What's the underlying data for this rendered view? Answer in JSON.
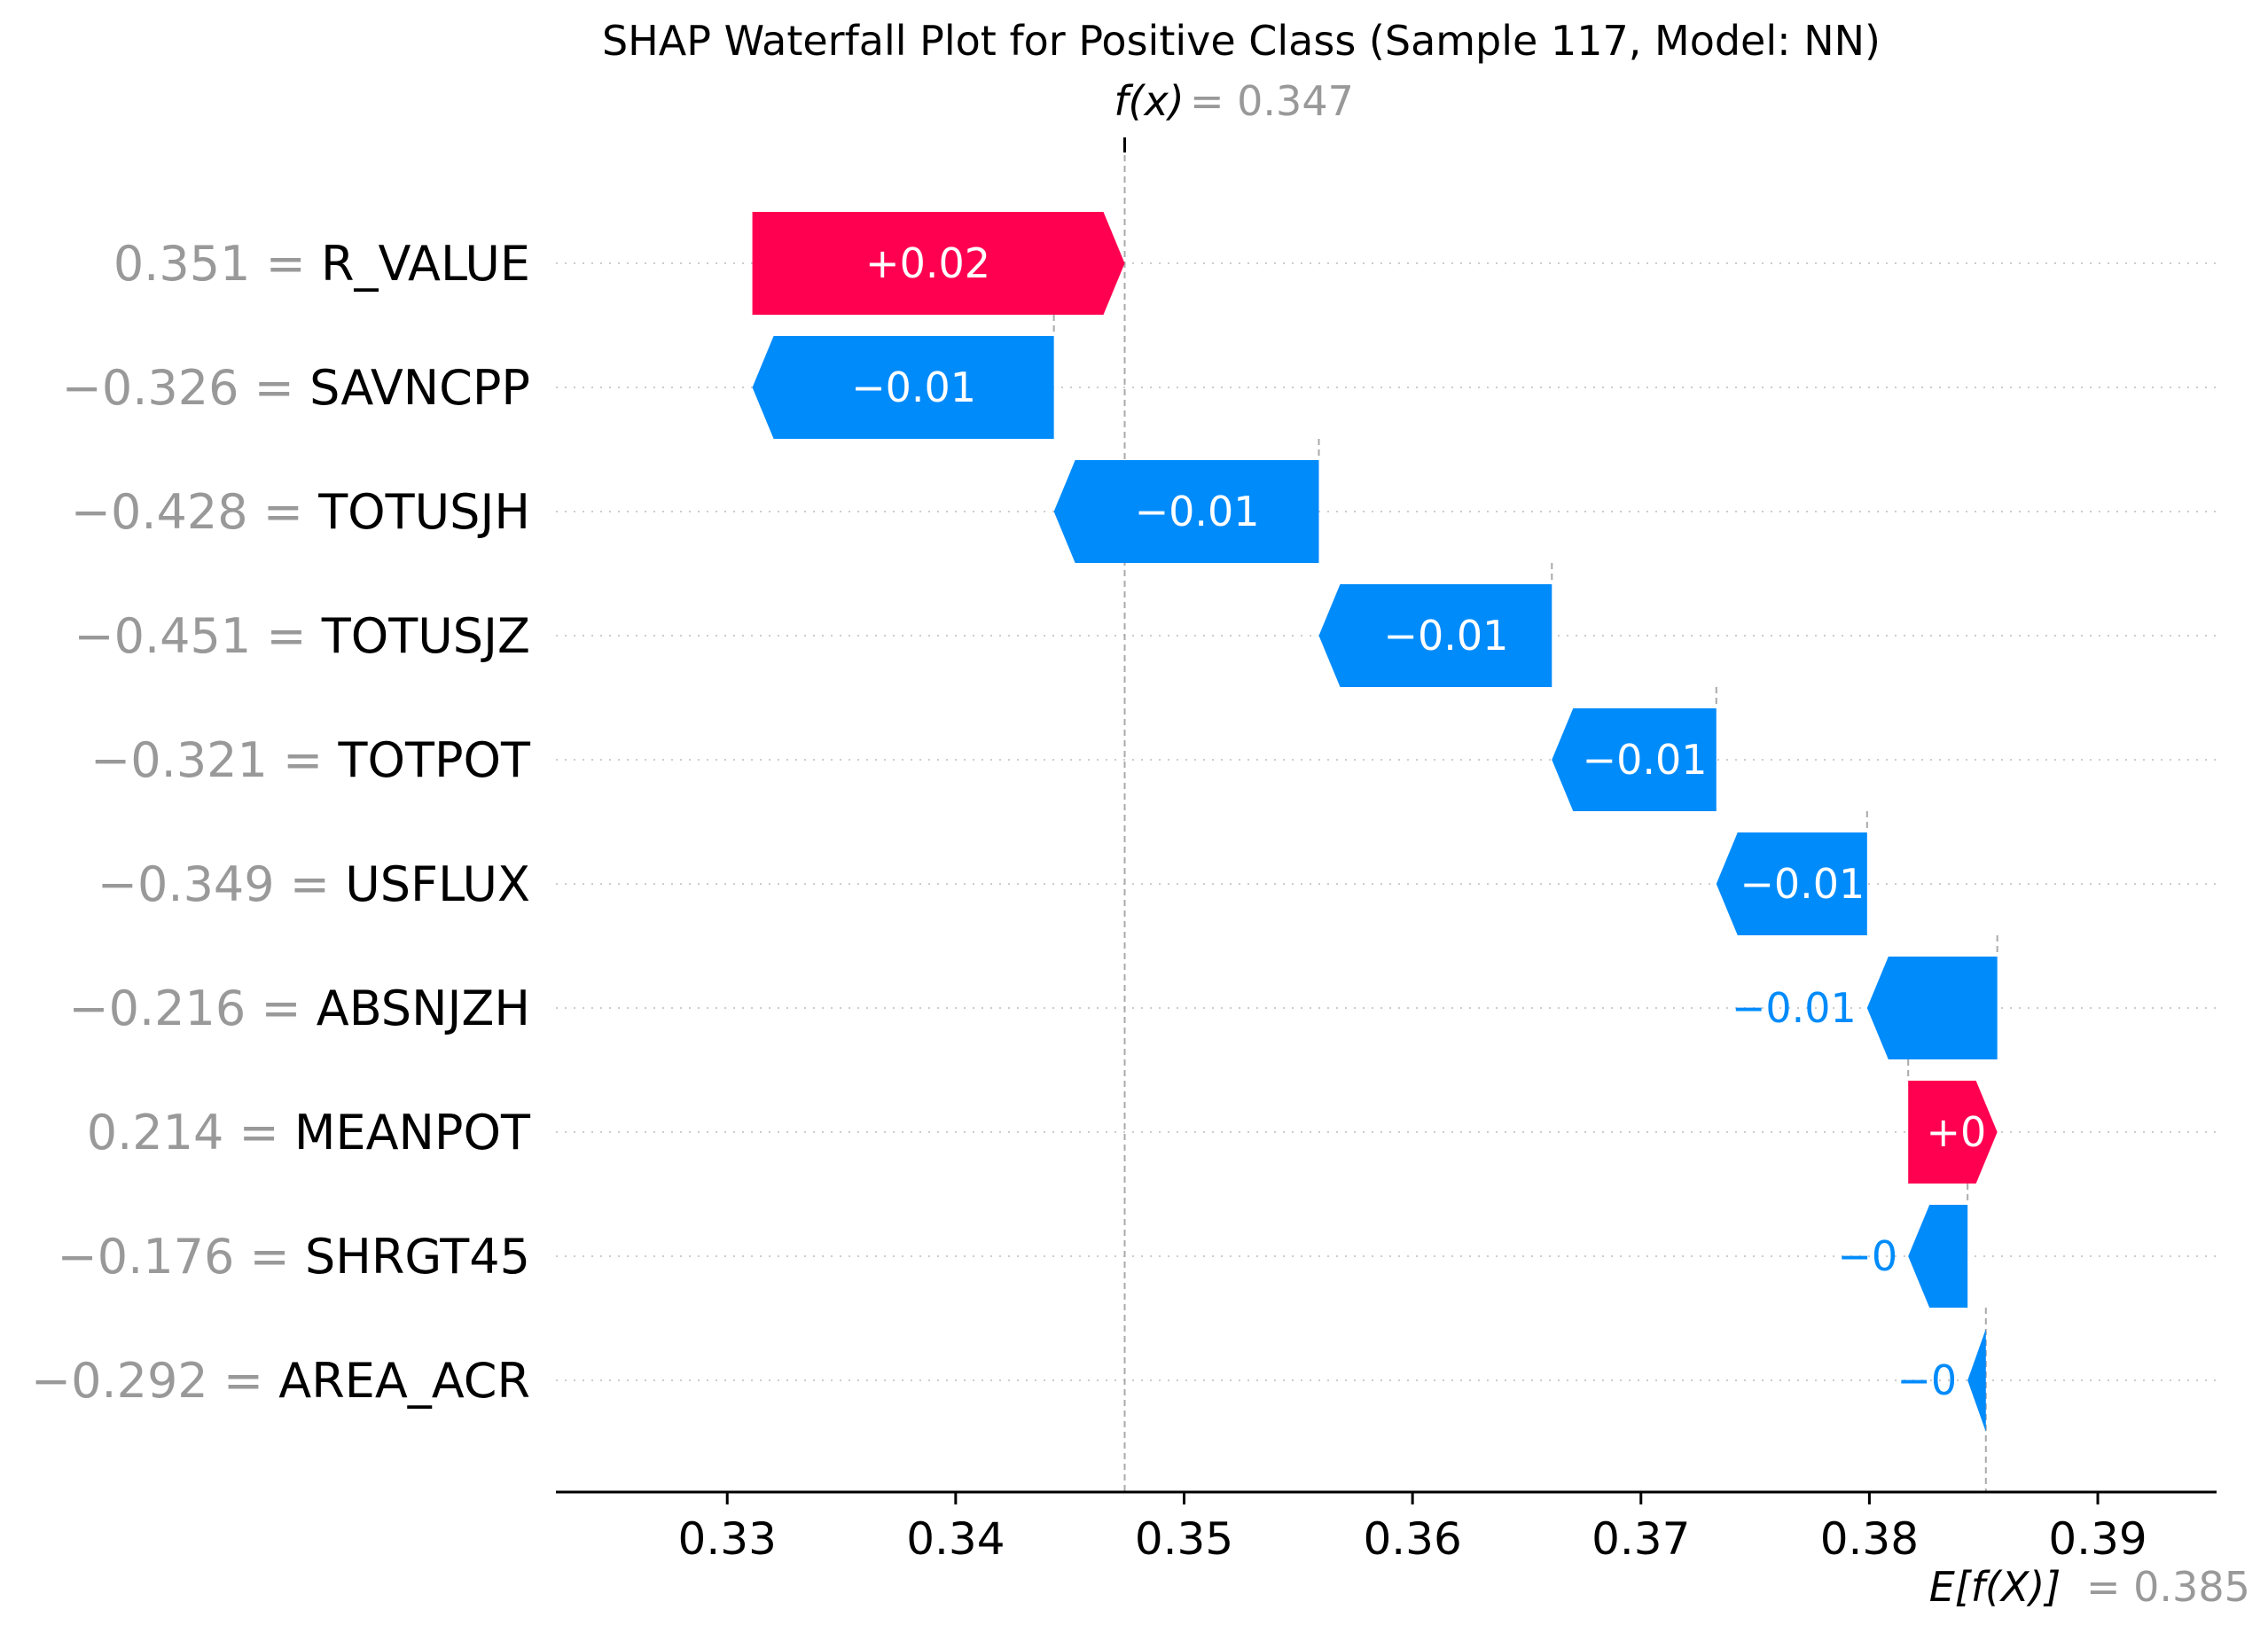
{
  "chart_data": {
    "type": "waterfall",
    "title": "SHAP Waterfall Plot for Positive Class (Sample 117, Model: NN)",
    "fx": {
      "label": "f(x)",
      "value_text": "= 0.347",
      "value": 0.3474
    },
    "efx": {
      "label": "E[f(X)]",
      "value_text": "= 0.385",
      "value": 0.3851
    },
    "xlim": [
      0.3225,
      0.3952
    ],
    "xticks": [
      {
        "value": 0.33,
        "label": "0.33"
      },
      {
        "value": 0.34,
        "label": "0.34"
      },
      {
        "value": 0.35,
        "label": "0.35"
      },
      {
        "value": 0.36,
        "label": "0.36"
      },
      {
        "value": 0.37,
        "label": "0.37"
      },
      {
        "value": 0.38,
        "label": "0.38"
      },
      {
        "value": 0.39,
        "label": "0.39"
      }
    ],
    "features": [
      {
        "value_label": "0.351",
        "name": "R_VALUE",
        "start": 0.3311,
        "end": 0.3474,
        "label": "+0.02",
        "sign": "positive"
      },
      {
        "value_label": "−0.326",
        "name": "SAVNCPP",
        "start": 0.3443,
        "end": 0.3311,
        "label": "−0.01",
        "sign": "negative"
      },
      {
        "value_label": "−0.428",
        "name": "TOTUSJH",
        "start": 0.3559,
        "end": 0.3443,
        "label": "−0.01",
        "sign": "negative"
      },
      {
        "value_label": "−0.451",
        "name": "TOTUSJZ",
        "start": 0.3661,
        "end": 0.3559,
        "label": "−0.01",
        "sign": "negative"
      },
      {
        "value_label": "−0.321",
        "name": "TOTPOT",
        "start": 0.3733,
        "end": 0.3661,
        "label": "−0.01",
        "sign": "negative"
      },
      {
        "value_label": "−0.349",
        "name": "USFLUX",
        "start": 0.3799,
        "end": 0.3733,
        "label": "−0.01",
        "sign": "negative"
      },
      {
        "value_label": "−0.216",
        "name": "ABSNJZH",
        "start": 0.3856,
        "end": 0.3799,
        "label": "−0.01",
        "sign": "negative"
      },
      {
        "value_label": "0.214",
        "name": "MEANPOT",
        "start": 0.3817,
        "end": 0.3856,
        "label": "+0",
        "sign": "positive"
      },
      {
        "value_label": "−0.176",
        "name": "SHRGT45",
        "start": 0.3843,
        "end": 0.3817,
        "label": "−0",
        "sign": "negative"
      },
      {
        "value_label": "−0.292",
        "name": "AREA_ACR",
        "start": 0.3851,
        "end": 0.3843,
        "label": "−0",
        "sign": "negative"
      }
    ],
    "colors": {
      "positive": "#ff0051",
      "negative": "#008bfb",
      "feature_value": "#999999",
      "axis": "#000000",
      "grid": "#cccccc"
    },
    "grid": "horizontal dotted",
    "legend": "none"
  }
}
